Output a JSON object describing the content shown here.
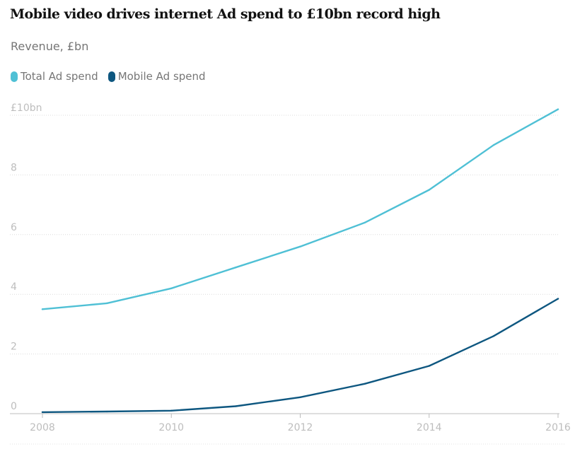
{
  "chart_data": {
    "type": "line",
    "title": "Mobile video drives internet Ad spend to £10bn record high",
    "subtitle": "Revenue, £bn",
    "x": [
      2008,
      2009,
      2010,
      2011,
      2012,
      2013,
      2014,
      2015,
      2016
    ],
    "xlim": [
      2008,
      2016
    ],
    "ylim": [
      0,
      10
    ],
    "x_ticks": [
      "2008",
      "2010",
      "2012",
      "2014",
      "2016"
    ],
    "y_ticks": [
      "0",
      "2",
      "4",
      "6",
      "8",
      "£10bn"
    ],
    "grid": "horizontal dotted",
    "legend_position": "top-left",
    "series": [
      {
        "name": "Total Ad spend",
        "color": "#4fc0d5",
        "values": [
          3.5,
          3.7,
          4.2,
          4.9,
          5.6,
          6.4,
          7.5,
          9.0,
          10.2
        ]
      },
      {
        "name": "Mobile Ad spend",
        "color": "#0e5780",
        "values": [
          0.05,
          0.07,
          0.1,
          0.25,
          0.55,
          1.0,
          1.6,
          2.6,
          3.85
        ]
      }
    ]
  }
}
